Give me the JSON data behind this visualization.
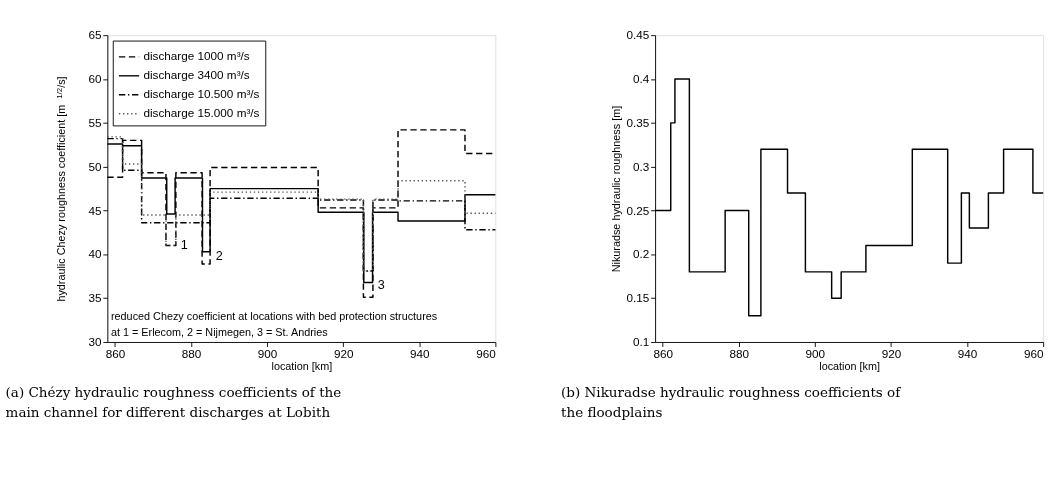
{
  "chart_data": [
    {
      "type": "step",
      "title": "(a) Chézy hydraulic roughness coefficients of the main channel for different discharges at Lobith",
      "xlabel": "location [km]",
      "ylabel": "hydraulic Chezy roughness coefficient [m$^{1/2}$/s]",
      "xlim": [
        858,
        960
      ],
      "xticks": [
        860,
        880,
        900,
        920,
        940,
        960
      ],
      "ylim": [
        30,
        65
      ],
      "yticks": [
        30,
        35,
        40,
        45,
        50,
        55,
        60,
        65
      ],
      "grid": false,
      "legend": "top left",
      "series": [
        {
          "name": "discharge 1000 m³/s",
          "color": "#000000",
          "line_style": "dashed",
          "x": [
            858,
            862,
            867,
            873.4,
            876,
            882.9,
            885,
            913.4,
            925.3,
            927.8,
            934.4,
            952,
            960
          ],
          "values": [
            48.8,
            53,
            49.3,
            41,
            49.3,
            38.9,
            49.9,
            45.3,
            35.1,
            45.3,
            54.2,
            51.5,
            51.5
          ]
        },
        {
          "name": "discharge 3400 m³/s",
          "color": "#000000",
          "line_style": "solid",
          "x": [
            858,
            862,
            867,
            873.6,
            875.8,
            883,
            885,
            913.4,
            925.4,
            927.7,
            934.4,
            952,
            960
          ],
          "values": [
            52.6,
            52.4,
            48.7,
            44.6,
            48.7,
            40.3,
            47.5,
            44.8,
            36.8,
            44.8,
            43.8,
            46.8,
            46.8
          ]
        },
        {
          "name": "discharge 10.500 m³/s",
          "color": "#000000",
          "line_style": "dashdot",
          "x": [
            858,
            862,
            867,
            885,
            913.4,
            925.3,
            927.8,
            934.4,
            952,
            960
          ],
          "values": [
            53.2,
            49.6,
            43.6,
            46.4,
            46.2,
            38.1,
            46.2,
            46.1,
            42.8,
            42.8
          ]
        },
        {
          "name": "discharge 15.000 m³/s",
          "color": "#555555",
          "line_style": "dotted",
          "x": [
            858,
            862,
            867,
            873.4,
            876,
            885,
            913.4,
            925.3,
            927.8,
            934.4,
            952,
            960
          ],
          "values": [
            53.4,
            50.3,
            44.5,
            41,
            44.5,
            47.1,
            46.3,
            38.1,
            46.3,
            48.4,
            44.7,
            44.7
          ]
        }
      ],
      "annotations": [
        {
          "text": "1",
          "x": 876.8,
          "y": 41
        },
        {
          "text": "2",
          "x": 886,
          "y": 39.8
        },
        {
          "text": "3",
          "x": 928.6,
          "y": 36.5
        },
        "reduced Chezy coefficient at locations with bed protection structures",
        "at 1 = Erlecom, 2 = Nijmegen, 3 = St. Andries"
      ]
    },
    {
      "type": "step",
      "title": "(b) Nikuradse hydraulic roughness coefficients of the floodplains",
      "xlabel": "location [km]",
      "ylabel": "Nikuradse hydraulic roughness [m]",
      "xlim": [
        858,
        960
      ],
      "xticks": [
        860,
        880,
        900,
        920,
        940,
        960
      ],
      "ylim": [
        0.1,
        0.45
      ],
      "yticks": [
        0.1,
        0.15,
        0.2,
        0.25,
        0.3,
        0.35,
        0.4,
        0.45
      ],
      "grid": false,
      "series": [
        {
          "color": "#000000",
          "line_style": "solid",
          "x": [
            858,
            862.1,
            863.2,
            867,
            876.4,
            882.6,
            885.8,
            892.8,
            897.5,
            904.4,
            906.9,
            913.4,
            925.6,
            934.9,
            938.5,
            940.6,
            945.6,
            949.6,
            957.3,
            960
          ],
          "values": [
            0.25,
            0.35,
            0.4,
            0.18,
            0.25,
            0.13,
            0.32,
            0.27,
            0.18,
            0.15,
            0.18,
            0.21,
            0.32,
            0.19,
            0.27,
            0.23,
            0.27,
            0.32,
            0.27,
            0.27
          ]
        }
      ]
    }
  ]
}
